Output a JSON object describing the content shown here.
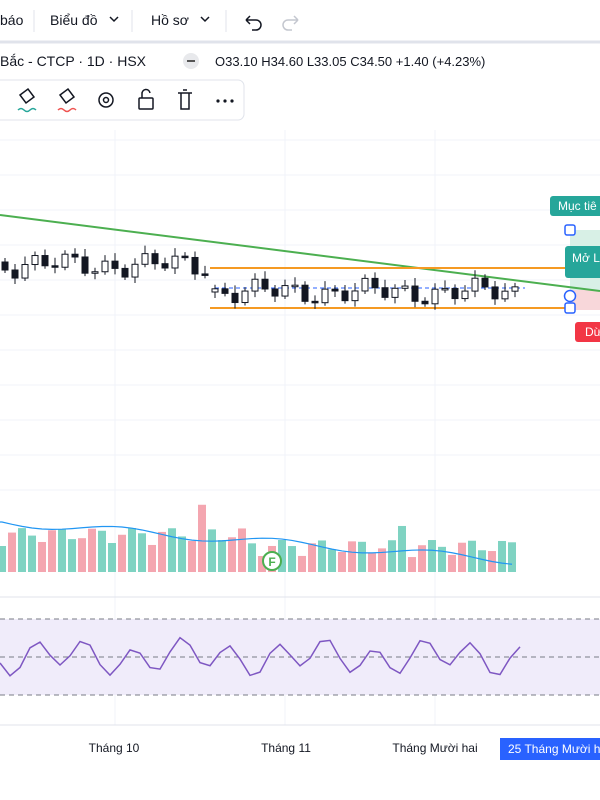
{
  "toolbar": {
    "items": [
      "báo",
      "Biểu đồ",
      "Hồ sơ"
    ]
  },
  "legend": {
    "symbol": "Bắc - CTCP · 1D · HSX",
    "open": "O33.10",
    "high": "H34.60",
    "low": "L33.05",
    "close": "C34.50",
    "change": "+1.40 (+4.23%)"
  },
  "tags": {
    "target": "Mục tiê",
    "entry": "Mở L",
    "stop": "Dừ"
  },
  "volume": {
    "marker": "F"
  },
  "time_axis": {
    "labels": [
      "Tháng 10",
      "Tháng 11",
      "Tháng Mười hai"
    ],
    "current": "25 Tháng Mười h"
  }
}
